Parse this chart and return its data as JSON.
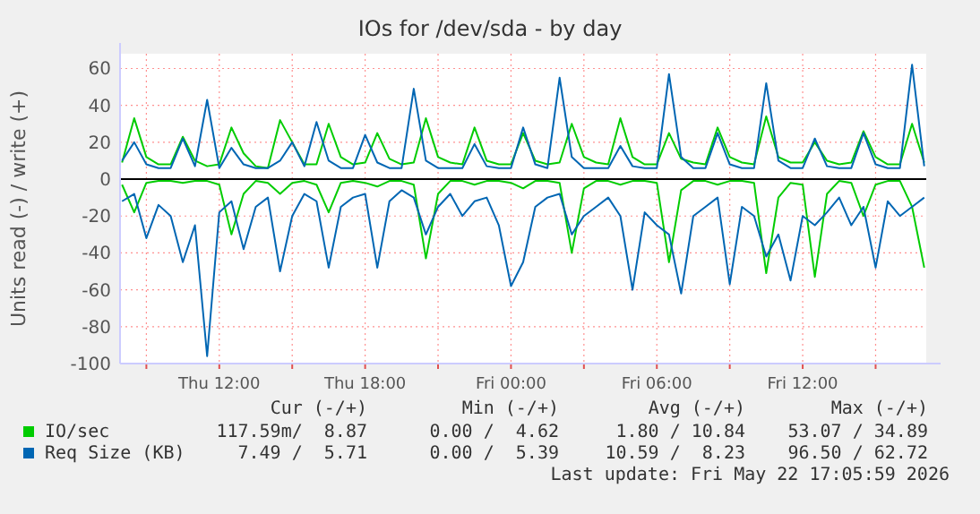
{
  "chart_data": {
    "type": "line",
    "title": "IOs for /dev/sda - by day",
    "ylabel": "Units read (-) / write (+)",
    "x": [
      "2026-05-21T08:00",
      "2026-05-21T08:30",
      "2026-05-21T09:00",
      "2026-05-21T09:30",
      "2026-05-21T10:00",
      "2026-05-21T10:30",
      "2026-05-21T11:00",
      "2026-05-21T11:30",
      "2026-05-21T12:00",
      "2026-05-21T12:30",
      "2026-05-21T13:00",
      "2026-05-21T13:30",
      "2026-05-21T14:00",
      "2026-05-21T14:30",
      "2026-05-21T15:00",
      "2026-05-21T15:30",
      "2026-05-21T16:00",
      "2026-05-21T16:30",
      "2026-05-21T17:00",
      "2026-05-21T17:30",
      "2026-05-21T18:00",
      "2026-05-21T18:30",
      "2026-05-21T19:00",
      "2026-05-21T19:30",
      "2026-05-21T20:00",
      "2026-05-21T20:30",
      "2026-05-21T21:00",
      "2026-05-21T21:30",
      "2026-05-21T22:00",
      "2026-05-21T22:30",
      "2026-05-21T23:00",
      "2026-05-21T23:30",
      "2026-05-22T00:00",
      "2026-05-22T00:30",
      "2026-05-22T01:00",
      "2026-05-22T01:30",
      "2026-05-22T02:00",
      "2026-05-22T02:30",
      "2026-05-22T03:00",
      "2026-05-22T03:30",
      "2026-05-22T04:00",
      "2026-05-22T04:30",
      "2026-05-22T05:00",
      "2026-05-22T05:30",
      "2026-05-22T06:00",
      "2026-05-22T06:30",
      "2026-05-22T07:00",
      "2026-05-22T07:30",
      "2026-05-22T08:00",
      "2026-05-22T08:30",
      "2026-05-22T09:00",
      "2026-05-22T09:30",
      "2026-05-22T10:00",
      "2026-05-22T10:30",
      "2026-05-22T11:00",
      "2026-05-22T11:30",
      "2026-05-22T12:00",
      "2026-05-22T12:30",
      "2026-05-22T13:00",
      "2026-05-22T13:30",
      "2026-05-22T14:00",
      "2026-05-22T14:30",
      "2026-05-22T15:00",
      "2026-05-22T15:30",
      "2026-05-22T16:00",
      "2026-05-22T16:30",
      "2026-05-22T17:00"
    ],
    "series": [
      {
        "name": "IO/sec",
        "color": "#00cc00",
        "values": [
          9,
          33,
          12,
          8,
          8,
          23,
          10,
          7,
          8,
          28,
          14,
          7,
          6,
          32,
          20,
          8,
          8,
          30,
          12,
          8,
          9,
          25,
          11,
          8,
          9,
          33,
          12,
          9,
          8,
          28,
          10,
          8,
          8,
          25,
          10,
          8,
          9,
          30,
          12,
          9,
          8,
          33,
          12,
          8,
          8,
          25,
          11,
          9,
          8,
          28,
          12,
          9,
          8,
          34,
          12,
          9,
          9,
          20,
          10,
          8,
          9,
          26,
          12,
          8,
          8,
          30,
          9
        ]
      },
      {
        "name": "Req Size (KB)",
        "color": "#0066b3",
        "values": [
          10,
          20,
          8,
          6,
          6,
          22,
          7,
          43,
          6,
          17,
          8,
          6,
          6,
          10,
          20,
          7,
          31,
          10,
          6,
          6,
          24,
          9,
          6,
          6,
          49,
          10,
          6,
          6,
          6,
          19,
          7,
          6,
          6,
          28,
          8,
          6,
          55,
          12,
          6,
          6,
          6,
          18,
          7,
          6,
          6,
          57,
          12,
          6,
          6,
          25,
          8,
          6,
          6,
          52,
          10,
          6,
          6,
          22,
          7,
          6,
          6,
          25,
          8,
          6,
          6,
          62,
          7
        ]
      },
      {
        "color": "#00cc00",
        "values": [
          -3,
          -18,
          -2,
          -1,
          -1,
          -2,
          -1,
          -1,
          -3,
          -30,
          -8,
          -1,
          -2,
          -8,
          -2,
          -1,
          -3,
          -18,
          -2,
          -1,
          -2,
          -4,
          -1,
          -1,
          -3,
          -43,
          -8,
          -1,
          -1,
          -3,
          -1,
          -1,
          -2,
          -5,
          -1,
          -1,
          -2,
          -40,
          -5,
          -1,
          -1,
          -3,
          -1,
          -1,
          -2,
          -45,
          -6,
          -1,
          -1,
          -3,
          -1,
          -1,
          -2,
          -51,
          -10,
          -2,
          -3,
          -53,
          -8,
          -1,
          -2,
          -20,
          -3,
          -1,
          -1,
          -15,
          -48
        ]
      },
      {
        "color": "#0066b3",
        "values": [
          -12,
          -8,
          -32,
          -14,
          -20,
          -45,
          -25,
          -96,
          -18,
          -12,
          -38,
          -15,
          -10,
          -50,
          -20,
          -8,
          -12,
          -48,
          -15,
          -10,
          -8,
          -48,
          -12,
          -6,
          -10,
          -30,
          -15,
          -8,
          -20,
          -12,
          -10,
          -25,
          -58,
          -45,
          -15,
          -10,
          -8,
          -30,
          -20,
          -15,
          -10,
          -20,
          -60,
          -18,
          -25,
          -30,
          -62,
          -20,
          -15,
          -10,
          -57,
          -15,
          -20,
          -42,
          -30,
          -55,
          -20,
          -25,
          -18,
          -10,
          -25,
          -15,
          -48,
          -12,
          -20,
          -15,
          -10
        ]
      }
    ],
    "xlim": [
      "2026-05-21T07:55",
      "2026-05-22T17:05"
    ],
    "xticks": [
      {
        "value": "2026-05-21T09:00",
        "label": null
      },
      {
        "value": "2026-05-21T12:00",
        "label": "Thu 12:00"
      },
      {
        "value": "2026-05-21T15:00",
        "label": null
      },
      {
        "value": "2026-05-21T18:00",
        "label": "Thu 18:00"
      },
      {
        "value": "2026-05-21T21:00",
        "label": null
      },
      {
        "value": "2026-05-22T00:00",
        "label": "Fri 00:00"
      },
      {
        "value": "2026-05-22T03:00",
        "label": null
      },
      {
        "value": "2026-05-22T06:00",
        "label": "Fri 06:00"
      },
      {
        "value": "2026-05-22T09:00",
        "label": null
      },
      {
        "value": "2026-05-22T12:00",
        "label": "Fri 12:00"
      },
      {
        "value": "2026-05-22T15:00",
        "label": null
      }
    ],
    "ylim": [
      -100,
      68
    ],
    "yticks": [
      -100,
      -80,
      -60,
      -40,
      -20,
      0,
      20,
      40,
      60
    ],
    "grid": true,
    "legend": "bottom left",
    "annotations": [
      "Cur (-/+)",
      "Min (-/+)",
      "Avg (-/+)",
      "Max (-/+)",
      "117.59m/  8.87",
      "0.00 /  4.62",
      "1.80 / 10.84",
      "53.07 / 34.89",
      "7.49 /  5.71",
      "0.00 /  5.39",
      "10.59 /  8.23",
      "96.50 / 62.72",
      "Last update: Fri May 22 17:05:59 2026"
    ]
  }
}
